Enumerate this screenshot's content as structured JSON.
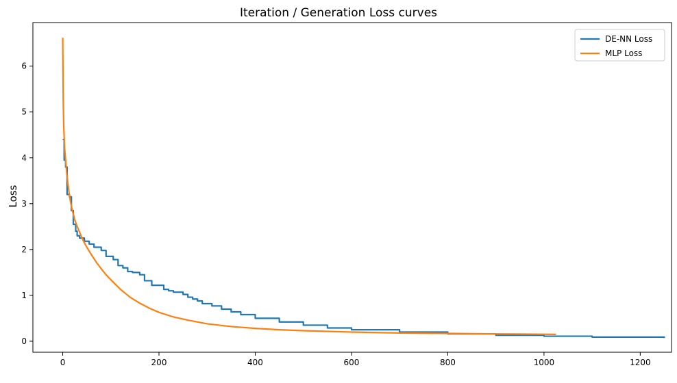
{
  "chart_data": {
    "type": "line",
    "title": "Iteration / Generation Loss curves",
    "xlabel": "",
    "ylabel": "Loss",
    "xlim": [
      -62,
      1265
    ],
    "ylim": [
      -0.24,
      6.95
    ],
    "xticks": [
      "0",
      "200",
      "400",
      "600",
      "800",
      "1000",
      "1200"
    ],
    "yticks": [
      "0",
      "1",
      "2",
      "3",
      "4",
      "5",
      "6"
    ],
    "grid": false,
    "legend_position": "top-right",
    "series": [
      {
        "name": "DE-NN Loss",
        "color": "#1f77b4",
        "step": true,
        "x": [
          0,
          3,
          6,
          9,
          14,
          18,
          22,
          27,
          30,
          35,
          45,
          55,
          65,
          75,
          80,
          90,
          105,
          115,
          125,
          135,
          145,
          160,
          170,
          185,
          200,
          210,
          220,
          230,
          250,
          260,
          270,
          280,
          290,
          310,
          330,
          350,
          370,
          400,
          450,
          500,
          550,
          600,
          700,
          800,
          900,
          1000,
          1100,
          1250
        ],
        "y": [
          4.4,
          3.95,
          3.8,
          3.2,
          3.15,
          2.85,
          2.55,
          2.4,
          2.3,
          2.25,
          2.18,
          2.12,
          2.05,
          2.05,
          1.98,
          1.85,
          1.78,
          1.65,
          1.6,
          1.52,
          1.5,
          1.45,
          1.32,
          1.22,
          1.22,
          1.13,
          1.1,
          1.07,
          1.02,
          0.96,
          0.92,
          0.88,
          0.82,
          0.77,
          0.7,
          0.64,
          0.58,
          0.5,
          0.42,
          0.35,
          0.29,
          0.25,
          0.2,
          0.16,
          0.13,
          0.11,
          0.09,
          0.07
        ]
      },
      {
        "name": "MLP Loss",
        "color": "#ff7f0e",
        "step": false,
        "x": [
          0,
          1,
          2,
          4,
          6,
          8,
          10,
          13,
          16,
          20,
          25,
          30,
          35,
          40,
          50,
          60,
          70,
          80,
          90,
          100,
          120,
          140,
          160,
          180,
          200,
          230,
          260,
          300,
          350,
          400,
          450,
          500,
          600,
          700,
          800,
          900,
          1025
        ],
        "y": [
          6.62,
          5.3,
          4.7,
          4.2,
          3.95,
          3.7,
          3.5,
          3.25,
          3.05,
          2.85,
          2.65,
          2.5,
          2.38,
          2.25,
          2.05,
          1.88,
          1.72,
          1.58,
          1.45,
          1.34,
          1.13,
          0.96,
          0.83,
          0.72,
          0.63,
          0.53,
          0.46,
          0.38,
          0.32,
          0.28,
          0.25,
          0.23,
          0.2,
          0.18,
          0.17,
          0.16,
          0.15
        ]
      }
    ]
  }
}
